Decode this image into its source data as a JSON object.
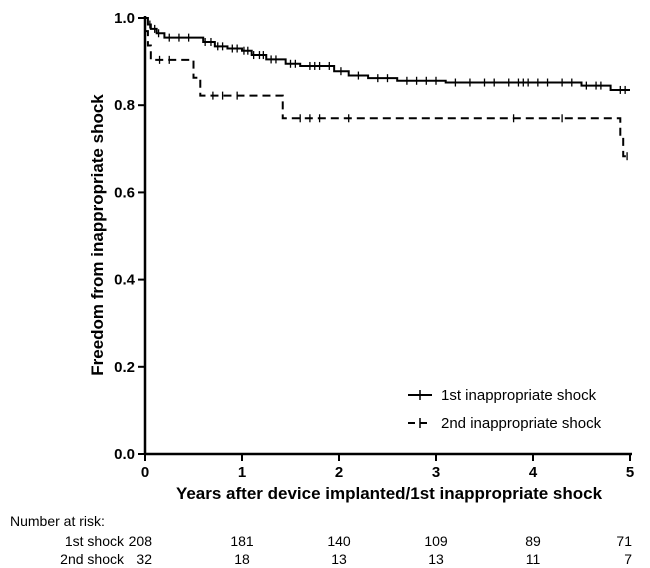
{
  "chart_data": {
    "type": "line",
    "xlabel": "Years after device implanted/1st inappropriate shock",
    "ylabel": "Freedom from inappropriate shock",
    "xlim": [
      0,
      5
    ],
    "ylim": [
      0.0,
      1.0
    ],
    "x_ticks": [
      "0",
      "1",
      "2",
      "3",
      "4",
      "5"
    ],
    "y_ticks": [
      "0.0",
      "0.2",
      "0.4",
      "0.6",
      "0.8",
      "1.0"
    ],
    "grid": false,
    "legend_position": "bottom-right",
    "series": [
      {
        "name": "1st inappropriate shock",
        "line_style": "solid",
        "color": "#000000",
        "steps": [
          [
            0,
            1.0
          ],
          [
            0.03,
            0.985
          ],
          [
            0.06,
            0.975
          ],
          [
            0.12,
            0.965
          ],
          [
            0.2,
            0.955
          ],
          [
            0.6,
            0.945
          ],
          [
            0.72,
            0.935
          ],
          [
            0.85,
            0.93
          ],
          [
            1.0,
            0.925
          ],
          [
            1.1,
            0.915
          ],
          [
            1.25,
            0.905
          ],
          [
            1.45,
            0.895
          ],
          [
            1.6,
            0.89
          ],
          [
            1.95,
            0.878
          ],
          [
            2.1,
            0.868
          ],
          [
            2.3,
            0.862
          ],
          [
            2.6,
            0.856
          ],
          [
            3.1,
            0.852
          ],
          [
            4.5,
            0.845
          ],
          [
            4.8,
            0.835
          ],
          [
            5.0,
            0.835
          ]
        ],
        "censor_x": [
          0.05,
          0.1,
          0.14,
          0.25,
          0.35,
          0.45,
          0.62,
          0.68,
          0.75,
          0.8,
          0.9,
          0.95,
          1.02,
          1.06,
          1.12,
          1.18,
          1.22,
          1.3,
          1.35,
          1.5,
          1.55,
          1.7,
          1.75,
          1.8,
          1.9,
          2.02,
          2.2,
          2.4,
          2.5,
          2.7,
          2.8,
          2.9,
          3.0,
          3.2,
          3.35,
          3.5,
          3.6,
          3.75,
          3.85,
          3.9,
          3.95,
          4.05,
          4.15,
          4.3,
          4.4,
          4.55,
          4.65,
          4.7,
          4.9,
          4.95
        ]
      },
      {
        "name": "2nd inappropriate shock",
        "line_style": "dashed",
        "color": "#000000",
        "steps": [
          [
            0,
            0.97
          ],
          [
            0.03,
            0.937
          ],
          [
            0.06,
            0.904
          ],
          [
            0.5,
            0.863
          ],
          [
            0.57,
            0.822
          ],
          [
            1.42,
            0.77
          ],
          [
            4.9,
            0.726
          ],
          [
            4.93,
            0.683
          ],
          [
            5.0,
            0.683
          ]
        ],
        "censor_x": [
          0.15,
          0.25,
          0.7,
          0.8,
          0.95,
          1.6,
          1.7,
          1.8,
          2.1,
          3.8,
          4.3,
          4.97
        ]
      }
    ],
    "risk_table": {
      "title": "Number at risk:",
      "rows": [
        {
          "label": "1st shock",
          "values": [
            "208",
            "181",
            "140",
            "109",
            "89",
            "71"
          ]
        },
        {
          "label": "2nd shock",
          "values": [
            "32",
            "18",
            "13",
            "13",
            "11",
            "7"
          ]
        }
      ]
    }
  }
}
